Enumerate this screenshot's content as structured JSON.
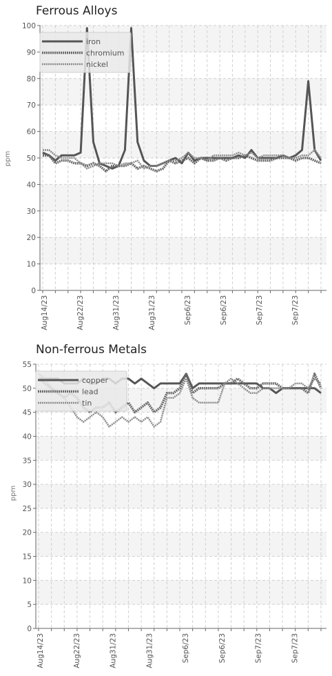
{
  "colors": {
    "band": "#f4f4f4",
    "grid": "#d0d0d0",
    "axis": "#666666"
  },
  "chart_data": [
    {
      "type": "line",
      "title": "Ferrous Alloys",
      "ylabel": "ppm",
      "ylim": [
        0,
        100
      ],
      "yticks": [
        0,
        10,
        20,
        30,
        40,
        50,
        60,
        70,
        80,
        90,
        100
      ],
      "tick_labels": [
        "Aug14/23",
        "Aug22/23",
        "Aug31/23",
        "Aug31/23",
        "Sep6/23",
        "Sep6/23",
        "Sep7/23",
        "Sep7/23"
      ],
      "legend": "top-left",
      "series": [
        {
          "name": "iron",
          "color": "#555555",
          "dash": "",
          "width": 3,
          "values": [
            52,
            51,
            49,
            51,
            51,
            51,
            52,
            99,
            56,
            48,
            47,
            46,
            47,
            53,
            99,
            56,
            49,
            47,
            47,
            48,
            49,
            50,
            48,
            52,
            49,
            50,
            50,
            50,
            50,
            50,
            50,
            51,
            50,
            53,
            50,
            50,
            50,
            50,
            51,
            50,
            51,
            53,
            79,
            53,
            49
          ]
        },
        {
          "name": "chromium",
          "color": "#6a6a6a",
          "dash": "2 1",
          "width": 3.5,
          "values": [
            51,
            51,
            48,
            49,
            49,
            48,
            48,
            47,
            48,
            47,
            45,
            47,
            47,
            47,
            48,
            46,
            47,
            46,
            45,
            46,
            49,
            48,
            49,
            50,
            48,
            50,
            49,
            49,
            50,
            49,
            50,
            50,
            51,
            50,
            49,
            49,
            49,
            50,
            50,
            50,
            49,
            50,
            50,
            49,
            48
          ]
        },
        {
          "name": "nickel",
          "color": "#8a8a8a",
          "dash": "2 1",
          "width": 2.5,
          "values": [
            53,
            53,
            51,
            50,
            50,
            50,
            48,
            46,
            47,
            48,
            48,
            48,
            47,
            48,
            48,
            49,
            46,
            47,
            47,
            48,
            49,
            49,
            50,
            52,
            50,
            50,
            49,
            51,
            51,
            51,
            51,
            52,
            51,
            52,
            50,
            51,
            51,
            51,
            51,
            50,
            50,
            51,
            51,
            53,
            50
          ]
        }
      ]
    },
    {
      "type": "line",
      "title": "Non-ferrous Metals",
      "ylabel": "ppm",
      "ylim": [
        0,
        55
      ],
      "yticks": [
        0,
        5,
        10,
        15,
        20,
        25,
        30,
        35,
        40,
        45,
        50,
        55
      ],
      "tick_labels": [
        "Aug14/23",
        "Aug22/23",
        "Aug31/23",
        "Aug31/23",
        "Sep6/23",
        "Sep6/23",
        "Sep7/23",
        "Sep7/23"
      ],
      "legend": "top-left",
      "series": [
        {
          "name": "copper",
          "color": "#555555",
          "dash": "",
          "width": 3,
          "values": [
            52,
            52,
            52,
            52,
            51,
            51,
            51,
            52,
            51,
            51,
            52,
            52,
            51,
            52,
            52,
            51,
            52,
            51,
            50,
            51,
            51,
            51,
            51,
            53,
            50,
            51,
            51,
            51,
            51,
            51,
            51,
            51,
            51,
            51,
            51,
            50,
            50,
            49,
            50,
            50,
            50,
            50,
            50,
            50,
            49
          ]
        },
        {
          "name": "lead",
          "color": "#6a6a6a",
          "dash": "2 1",
          "width": 3.5,
          "values": [
            52,
            51,
            50,
            49,
            48,
            49,
            48,
            46,
            45,
            46,
            46,
            47,
            45,
            46,
            47,
            45,
            46,
            47,
            45,
            46,
            49,
            49,
            50,
            53,
            49,
            50,
            50,
            50,
            50,
            51,
            51,
            52,
            51,
            50,
            50,
            51,
            51,
            51,
            50,
            50,
            50,
            50,
            49,
            53,
            50
          ]
        },
        {
          "name": "tin",
          "color": "#8a8a8a",
          "dash": "2 1",
          "width": 2.5,
          "values": [
            53,
            52,
            50,
            49,
            48,
            46,
            44,
            43,
            44,
            45,
            44,
            42,
            43,
            44,
            43,
            44,
            43,
            44,
            42,
            43,
            48,
            48,
            49,
            52,
            48,
            47,
            47,
            47,
            47,
            51,
            52,
            51,
            50,
            49,
            49,
            50,
            50,
            50,
            50,
            50,
            51,
            51,
            50,
            52,
            51
          ]
        }
      ]
    }
  ]
}
